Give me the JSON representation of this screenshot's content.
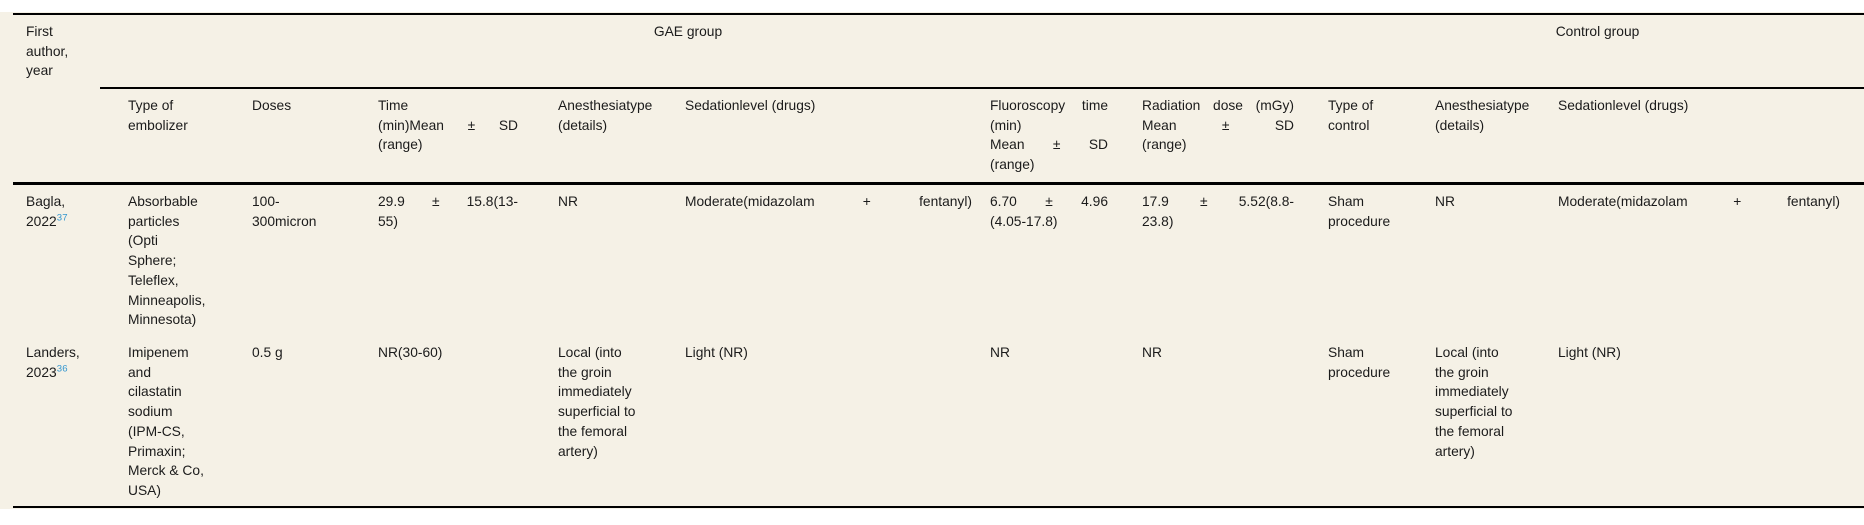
{
  "palette": {
    "page_background": "#ffffff",
    "table_background": "#f5f1e6",
    "rule_color": "#000000",
    "text_color": "#1b1b1b",
    "reference_link_color": "#3396cf"
  },
  "table": {
    "group_headers": {
      "gae": "GAE group",
      "control": "Control group"
    },
    "columns": {
      "first_author": [
        "First",
        "author,",
        "year"
      ],
      "type_of_embolizer": [
        "Type of",
        "embolizer"
      ],
      "doses": [
        "Doses"
      ],
      "time": [
        "Time",
        "(min)Mean ± SD",
        "(range)"
      ],
      "anesthesia": [
        "Anesthesiatype",
        "(details)"
      ],
      "sedation": [
        "Sedationlevel (drugs)"
      ],
      "fluoro_time": [
        "Fluoroscopy time",
        "(min)",
        "Mean ± SD",
        "(range)"
      ],
      "radiation_dose": [
        "Radiation dose (mGy)",
        "Mean ± SD",
        "(range)"
      ],
      "type_of_control": [
        "Type of",
        "control"
      ],
      "control_anesthesia": [
        "Anesthesiatype",
        "(details)"
      ],
      "control_sedation": [
        "Sedationlevel (drugs)"
      ]
    },
    "rows": [
      {
        "author_line1": "Bagla,",
        "author_line2": "2022",
        "ref": "37",
        "type_of_embolizer": [
          "Absorbable",
          "particles",
          "(Opti",
          "Sphere;",
          "Teleflex,",
          "Minneapolis,",
          "Minnesota)"
        ],
        "doses": [
          "100-",
          "300micron"
        ],
        "time": [
          "29.9 ± 15.8(13-",
          "55)"
        ],
        "anesthesia": [
          "NR"
        ],
        "sedation": [
          "Moderate(midazolam + fentanyl)"
        ],
        "fluoro_time": [
          "6.70 ± 4.96",
          "(4.05-17.8)"
        ],
        "radiation_dose": [
          "17.9 ± 5.52(8.8-",
          "23.8)"
        ],
        "type_of_control": [
          "Sham",
          "procedure"
        ],
        "control_anesthesia": [
          "NR"
        ],
        "control_sedation": [
          "Moderate(midazolam + fentanyl)"
        ]
      },
      {
        "author_line1": "Landers,",
        "author_line2": "2023",
        "ref": "36",
        "type_of_embolizer": [
          "Imipenem",
          "and",
          "cilastatin",
          "sodium",
          "(IPM-CS,",
          "Primaxin;",
          "Merck & Co,",
          "USA)"
        ],
        "doses": [
          "0.5 g"
        ],
        "time": [
          "NR(30-60)"
        ],
        "anesthesia": [
          "Local (into",
          "the groin",
          "immediately",
          "superficial to",
          "the femoral",
          "artery)"
        ],
        "sedation": [
          "Light (NR)"
        ],
        "fluoro_time": [
          "NR"
        ],
        "radiation_dose": [
          "NR"
        ],
        "type_of_control": [
          "Sham",
          "procedure"
        ],
        "control_anesthesia": [
          "Local (into",
          "the groin",
          "immediately",
          "superficial to",
          "the femoral",
          "artery)"
        ],
        "control_sedation": [
          "Light (NR)"
        ]
      }
    ]
  }
}
